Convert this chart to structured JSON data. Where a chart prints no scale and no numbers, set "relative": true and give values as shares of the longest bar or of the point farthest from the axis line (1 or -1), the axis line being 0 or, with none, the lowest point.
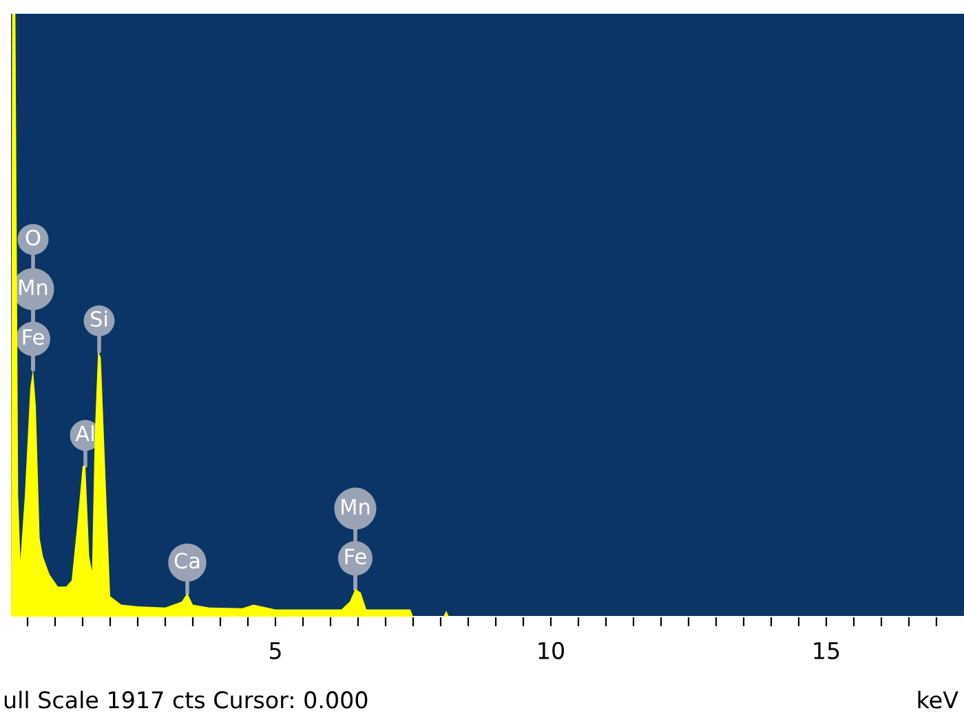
{
  "chart_data": {
    "type": "area",
    "relative": true,
    "xlabel": "keV",
    "xlim": [
      0.2,
      17.5
    ],
    "xticks": [
      {
        "value": 0.5,
        "label": null
      },
      {
        "value": 1,
        "label": null
      },
      {
        "value": 1.5,
        "label": null
      },
      {
        "value": 2,
        "label": null
      },
      {
        "value": 2.5,
        "label": null
      },
      {
        "value": 3,
        "label": null
      },
      {
        "value": 3.5,
        "label": null
      },
      {
        "value": 4,
        "label": null
      },
      {
        "value": 4.5,
        "label": null
      },
      5,
      {
        "value": 5.5,
        "label": null
      },
      {
        "value": 6,
        "label": null
      },
      {
        "value": 6.5,
        "label": null
      },
      {
        "value": 7,
        "label": null
      },
      {
        "value": 7.5,
        "label": null
      },
      {
        "value": 8,
        "label": null
      },
      {
        "value": 8.5,
        "label": null
      },
      {
        "value": 9,
        "label": null
      },
      {
        "value": 9.5,
        "label": null
      },
      10,
      {
        "value": 10.5,
        "label": null
      },
      {
        "value": 11,
        "label": null
      },
      {
        "value": 11.5,
        "label": null
      },
      {
        "value": 12,
        "label": null
      },
      {
        "value": 12.5,
        "label": null
      },
      {
        "value": 13,
        "label": null
      },
      {
        "value": 13.5,
        "label": null
      },
      {
        "value": 14,
        "label": null
      },
      {
        "value": 14.5,
        "label": null
      },
      15,
      {
        "value": 15.5,
        "label": null
      },
      {
        "value": 16,
        "label": null
      },
      {
        "value": 16.5,
        "label": null
      },
      {
        "value": 17,
        "label": null
      }
    ],
    "series": [
      {
        "color": "#ffff00",
        "x": [
          0.2,
          0.22,
          0.28,
          0.33,
          0.37,
          0.45,
          0.55,
          0.6,
          0.65,
          0.72,
          0.78,
          0.9,
          1.05,
          1.2,
          1.3,
          1.4,
          1.5,
          1.55,
          1.62,
          1.67,
          1.72,
          1.78,
          1.83,
          1.95,
          2.0,
          2.2,
          2.5,
          3.0,
          3.3,
          3.4,
          3.5,
          3.8,
          4.4,
          4.6,
          5.0,
          5.5,
          6.2,
          6.35,
          6.45,
          6.55,
          6.65,
          7.45,
          7.5,
          8.05,
          8.1,
          8.15,
          17.5
        ],
        "values": [
          0,
          1,
          1,
          0.2,
          0.094,
          0.2,
          0.38,
          0.41,
          0.35,
          0.13,
          0.1,
          0.07,
          0.05,
          0.05,
          0.06,
          0.15,
          0.25,
          0.25,
          0.1,
          0.076,
          0.3,
          0.44,
          0.43,
          0.15,
          0.034,
          0.02,
          0.017,
          0.015,
          0.025,
          0.039,
          0.02,
          0.015,
          0.014,
          0.02,
          0.012,
          0.012,
          0.012,
          0.025,
          0.046,
          0.04,
          0.012,
          0.012,
          0,
          0,
          0.01,
          0,
          0
        ]
      }
    ],
    "annotations": [
      {
        "text": "Fe",
        "x": 0.6,
        "y": 0.41
      },
      {
        "text": "Mn",
        "x": 0.6,
        "y": 0.41
      },
      {
        "text": "O",
        "x": 0.6,
        "y": 0.41
      },
      {
        "text": "Si",
        "x": 1.8,
        "y": 0.44
      },
      {
        "text": "Al",
        "x": 1.55,
        "y": 0.25
      },
      {
        "text": "Ca",
        "x": 3.4,
        "y": 0.039
      },
      {
        "text": "Fe",
        "x": 6.45,
        "y": 0.046
      },
      {
        "text": "Mn",
        "x": 6.45,
        "y": 0.046
      },
      "ull Scale 1917 cts Cursor: 0.000"
    ]
  }
}
